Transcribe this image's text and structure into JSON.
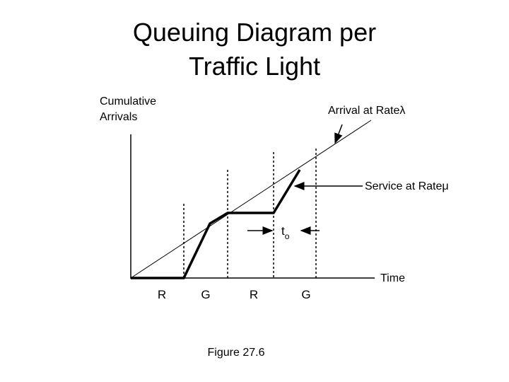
{
  "title": [
    "Queuing Diagram per",
    "Traffic Light"
  ],
  "diagram": {
    "y_axis_label": [
      "Cumulative",
      "Arrivals"
    ],
    "arrival_label": "Arrival at Rateλ",
    "service_label": "Service at Rateμ",
    "x_axis_label": "Time",
    "phases": [
      "R",
      "G",
      "R",
      "G"
    ],
    "t0": {
      "base": "t",
      "sub": "o"
    }
  },
  "caption": "Figure 27.6"
}
